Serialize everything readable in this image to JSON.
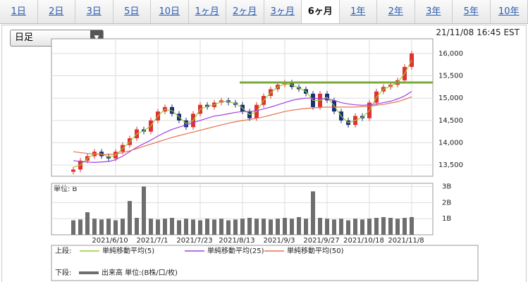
{
  "tabs": [
    "1日",
    "2日",
    "3日",
    "5日",
    "10日",
    "1ヶ月",
    "2ヶ月",
    "3ヶ月",
    "6ヶ月",
    "1年",
    "2年",
    "3年",
    "5年",
    "10年"
  ],
  "active_tab": 8,
  "dropdown": "日足",
  "timestamp": "21/11/08 16:45 EST",
  "legend": {
    "upper_label": "上段:",
    "lower_label": "下段:"
  },
  "chart_data": [
    {
      "type": "candlestick",
      "up_color": "#e03030",
      "down_color": "#1a2e7a",
      "candles": {
        "open": [
          13350,
          13400,
          13600,
          13700,
          13800,
          13700,
          13650,
          13800,
          13950,
          14100,
          14300,
          14250,
          14500,
          14700,
          14800,
          14650,
          14500,
          14350,
          14650,
          14850,
          14800,
          14900,
          14950,
          14900,
          14850,
          14700,
          14550,
          14850,
          15050,
          15200,
          15300,
          15350,
          15250,
          15200,
          15100,
          14800,
          15100,
          14950,
          14700,
          14500,
          14400,
          14600,
          14550,
          14900,
          15150,
          15250,
          15300,
          15400,
          15700
        ],
        "high": [
          13460,
          13660,
          13760,
          13860,
          13860,
          13760,
          13860,
          14010,
          14160,
          14360,
          14360,
          14560,
          14760,
          14860,
          14860,
          14710,
          14560,
          14710,
          14910,
          14910,
          14960,
          15010,
          15010,
          14960,
          14910,
          14760,
          14910,
          15110,
          15260,
          15360,
          15410,
          15410,
          15310,
          15260,
          15160,
          15160,
          15160,
          15010,
          14760,
          14560,
          14660,
          14660,
          14960,
          15210,
          15310,
          15360,
          15460,
          15760,
          16060
        ],
        "low": [
          13290,
          13340,
          13540,
          13640,
          13640,
          13590,
          13590,
          13740,
          13890,
          14040,
          14190,
          14190,
          14440,
          14640,
          14590,
          14440,
          14290,
          14290,
          14590,
          14740,
          14740,
          14840,
          14840,
          14790,
          14640,
          14490,
          14490,
          14790,
          14990,
          15140,
          15240,
          15190,
          15140,
          15040,
          14740,
          14740,
          14890,
          14640,
          14440,
          14340,
          14340,
          14490,
          14490,
          14840,
          15090,
          15190,
          15240,
          15340,
          15640
        ],
        "close": [
          13400,
          13600,
          13700,
          13800,
          13700,
          13650,
          13800,
          13950,
          14100,
          14300,
          14250,
          14500,
          14700,
          14800,
          14650,
          14500,
          14350,
          14650,
          14850,
          14800,
          14900,
          14950,
          14900,
          14850,
          14700,
          14550,
          14850,
          15050,
          15200,
          15300,
          15350,
          15250,
          15200,
          15100,
          14800,
          15100,
          14950,
          14700,
          14500,
          14400,
          14600,
          14550,
          14900,
          15150,
          15250,
          15300,
          15400,
          15700,
          16000
        ]
      },
      "series": [
        {
          "name": "単純移動平均(5)",
          "color": "#9acd32",
          "values": [
            13450,
            13500,
            13650,
            13750,
            13750,
            13680,
            13720,
            13870,
            14020,
            14200,
            14270,
            14380,
            14600,
            14750,
            14720,
            14580,
            14430,
            14500,
            14750,
            14820,
            14850,
            14920,
            14920,
            14880,
            14780,
            14630,
            14700,
            14950,
            15120,
            15250,
            15320,
            15300,
            15230,
            15150,
            14950,
            14950,
            15020,
            14830,
            14600,
            14450,
            14500,
            14570,
            14720,
            15020,
            15200,
            15270,
            15350,
            15550,
            15850
          ]
        },
        {
          "name": "単純移動平均(25)",
          "color": "#a040e0",
          "values": [
            13600,
            13580,
            13570,
            13560,
            13570,
            13580,
            13620,
            13700,
            13800,
            13900,
            13980,
            14060,
            14150,
            14230,
            14300,
            14350,
            14400,
            14450,
            14500,
            14550,
            14600,
            14620,
            14650,
            14680,
            14700,
            14700,
            14720,
            14760,
            14800,
            14850,
            14900,
            14950,
            14980,
            15000,
            15000,
            14990,
            14980,
            14950,
            14900,
            14870,
            14850,
            14840,
            14850,
            14870,
            14900,
            14930,
            14980,
            15050,
            15150
          ]
        },
        {
          "name": "単純移動平均(50)",
          "color": "#e8704a",
          "values": [
            13800,
            13780,
            13760,
            13750,
            13740,
            13740,
            13750,
            13780,
            13820,
            13870,
            13920,
            13970,
            14020,
            14070,
            14120,
            14160,
            14200,
            14240,
            14280,
            14320,
            14360,
            14400,
            14440,
            14470,
            14500,
            14520,
            14550,
            14580,
            14620,
            14660,
            14700,
            14730,
            14750,
            14770,
            14780,
            14790,
            14800,
            14800,
            14800,
            14800,
            14800,
            14810,
            14820,
            14840,
            14860,
            14890,
            14920,
            14970,
            15030
          ]
        }
      ],
      "hline": {
        "value": 15350,
        "x_start": 23.6,
        "color": "#7aa83a"
      },
      "xlim": [
        -3.1,
        51
      ],
      "ylim": [
        13250,
        16330
      ],
      "yticks": [
        {
          "value": 13500,
          "label": "13,500"
        },
        {
          "value": 14000,
          "label": "14,000"
        },
        {
          "value": 14500,
          "label": "14,500"
        },
        {
          "value": 15000,
          "label": "15,000"
        },
        {
          "value": 15500,
          "label": "15,500"
        },
        {
          "value": 16000,
          "label": "16,000"
        }
      ],
      "xticks": [
        {
          "value": 6,
          "label": "2021/6/10"
        },
        {
          "value": 12,
          "label": "2021/7/1"
        },
        {
          "value": 18,
          "label": "2021/7/23"
        },
        {
          "value": 24,
          "label": "2021/8/13"
        },
        {
          "value": 30,
          "label": "2021/9/3"
        },
        {
          "value": 36,
          "label": "2021/9/27"
        },
        {
          "value": 42,
          "label": "2021/10/18"
        },
        {
          "value": 48,
          "label": "2021/11/8"
        }
      ],
      "grid": true
    },
    {
      "type": "bar",
      "y_label": "単位: B",
      "series": [
        {
          "name": "出来高 単位:(B株/口/枚)",
          "color": "#6e6e6e",
          "values": [
            0.9,
            0.95,
            1.4,
            1.0,
            0.95,
            1.0,
            0.9,
            1.0,
            2.1,
            1.05,
            3.0,
            1.0,
            0.95,
            1.0,
            1.05,
            0.9,
            1.0,
            0.95,
            0.9,
            1.0,
            0.95,
            1.0,
            0.9,
            0.95,
            1.0,
            1.05,
            1.0,
            1.0,
            0.95,
            1.0,
            1.05,
            1.0,
            1.1,
            1.0,
            2.7,
            1.05,
            1.0,
            0.95,
            1.0,
            0.9,
            1.0,
            0.95,
            1.0,
            1.05,
            1.1,
            1.05,
            1.0,
            1.05,
            1.1
          ]
        }
      ],
      "xlim": [
        -3.1,
        51
      ],
      "ylim": [
        0,
        3.2
      ],
      "yticks": [
        {
          "value": 1,
          "label": "1B"
        },
        {
          "value": 2,
          "label": "2B"
        },
        {
          "value": 3,
          "label": "3B"
        }
      ],
      "grid": true
    }
  ]
}
